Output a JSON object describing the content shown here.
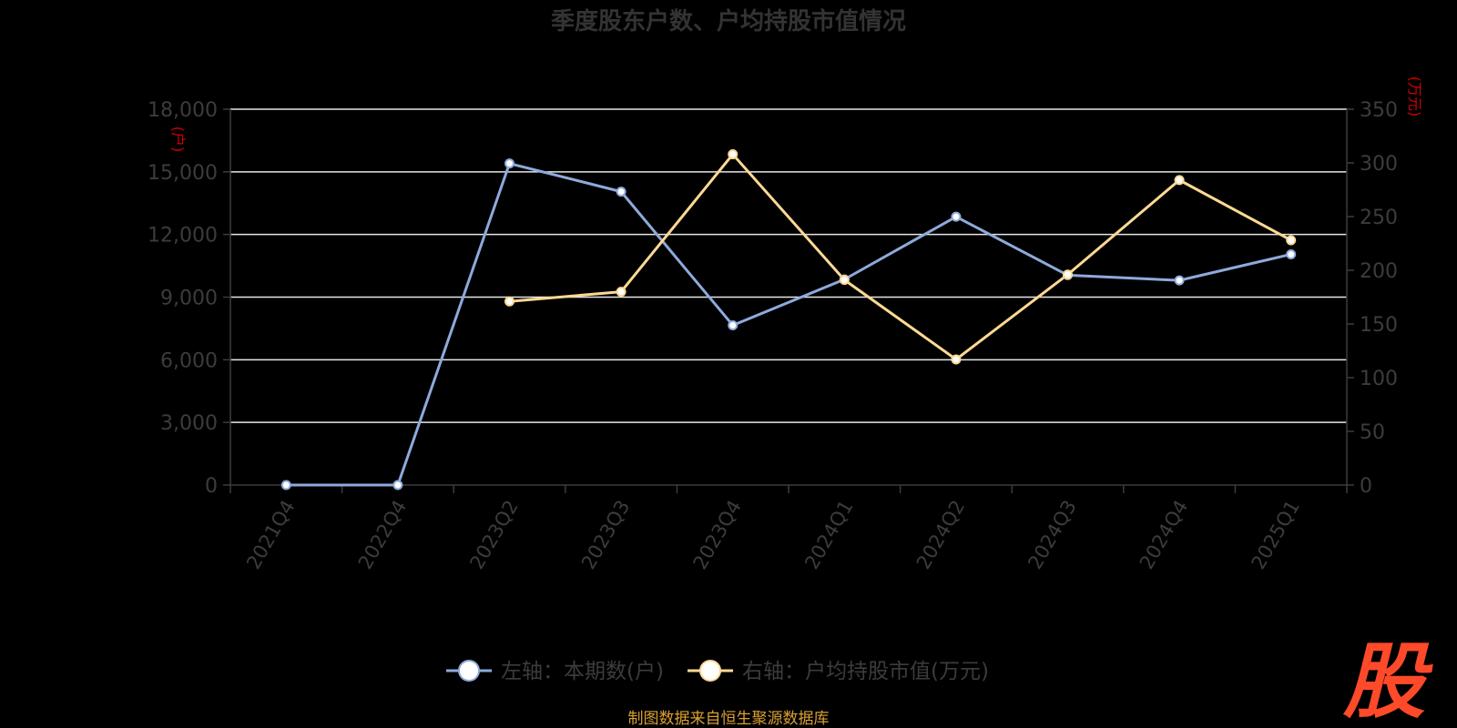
{
  "title": "季度股东户数、户均持股市值情况",
  "colors": {
    "background": "#000000",
    "left_series": "#8eaadb",
    "right_series": "#ffd993",
    "grid": "#e6e6e6",
    "axis_text": "#3c3c3c",
    "unit_text": "#d40000",
    "source_text": "#d9a032",
    "logo": "#ff4a2a"
  },
  "source_text": "制图数据来自恒生聚源数据库",
  "logo_text": "股",
  "chart_data": {
    "type": "line",
    "categories": [
      "2021Q4",
      "2022Q4",
      "2023Q2",
      "2023Q3",
      "2023Q4",
      "2024Q1",
      "2024Q2",
      "2024Q3",
      "2024Q4",
      "2025Q1"
    ],
    "left_axis": {
      "unit": "(户)",
      "ylim": [
        0,
        18000
      ],
      "ticks": [
        "0",
        "3,000",
        "6,000",
        "9,000",
        "12,000",
        "15,000",
        "18,000"
      ],
      "tick_values": [
        0,
        3000,
        6000,
        9000,
        12000,
        15000,
        18000
      ]
    },
    "right_axis": {
      "unit": "(万元)",
      "ylim": [
        0,
        350
      ],
      "ticks": [
        "0",
        "50",
        "100",
        "150",
        "200",
        "250",
        "300",
        "350"
      ],
      "tick_values": [
        0,
        50,
        100,
        150,
        200,
        250,
        300,
        350
      ]
    },
    "series": [
      {
        "name": "左轴：本期数(户)",
        "axis": "left",
        "color": "#8eaadb",
        "values": [
          0,
          0,
          15400,
          14050,
          7650,
          9850,
          12850,
          10050,
          9800,
          11050
        ]
      },
      {
        "name": "右轴：户均持股市值(万元)",
        "axis": "right",
        "color": "#ffd993",
        "values": [
          null,
          null,
          171,
          180,
          308,
          191,
          117,
          196,
          284,
          228
        ]
      }
    ],
    "grid": true,
    "legend_position": "bottom-center"
  }
}
